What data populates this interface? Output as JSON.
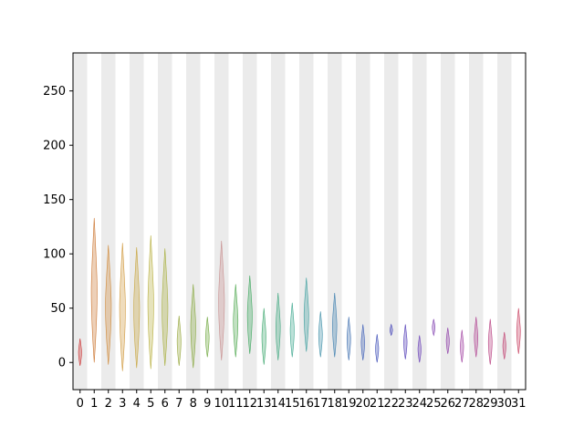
{
  "chart_data": {
    "type": "violin",
    "title": "",
    "xlabel": "",
    "ylabel": "",
    "categories": [
      "0",
      "1",
      "2",
      "3",
      "4",
      "5",
      "6",
      "7",
      "8",
      "9",
      "10",
      "11",
      "12",
      "13",
      "14",
      "15",
      "16",
      "17",
      "18",
      "19",
      "20",
      "21",
      "22",
      "23",
      "24",
      "25",
      "26",
      "27",
      "28",
      "29",
      "30",
      "31"
    ],
    "xlim": [
      -0.5,
      31.5
    ],
    "ylim": [
      -25,
      285
    ],
    "yticks": [
      0,
      50,
      100,
      150,
      200,
      250
    ],
    "grid": false,
    "background_bands": "alternating light-gray columns at even categories",
    "band_color": "#ebebeb",
    "groups": [
      {
        "name": "0",
        "color": "#cc3333",
        "min": -3,
        "max": 22
      },
      {
        "name": "1",
        "color": "#cc7733",
        "min": 0,
        "max": 133
      },
      {
        "name": "2",
        "color": "#d08a3a",
        "min": -2,
        "max": 108
      },
      {
        "name": "3",
        "color": "#d09a40",
        "min": -8,
        "max": 110
      },
      {
        "name": "4",
        "color": "#c8a640",
        "min": -5,
        "max": 106
      },
      {
        "name": "5",
        "color": "#b8b040",
        "min": -6,
        "max": 117
      },
      {
        "name": "6",
        "color": "#a8b040",
        "min": -3,
        "max": 105
      },
      {
        "name": "7",
        "color": "#98a840",
        "min": -3,
        "max": 43
      },
      {
        "name": "8",
        "color": "#88a840",
        "min": -5,
        "max": 72
      },
      {
        "name": "9",
        "color": "#70a840",
        "min": 5,
        "max": 42
      },
      {
        "name": "10",
        "color": "#c89090",
        "min": 2,
        "max": 112
      },
      {
        "name": "11",
        "color": "#50a850",
        "min": 5,
        "max": 72
      },
      {
        "name": "12",
        "color": "#40a860",
        "min": 8,
        "max": 80
      },
      {
        "name": "13",
        "color": "#40a870",
        "min": -2,
        "max": 50
      },
      {
        "name": "14",
        "color": "#40a880",
        "min": 2,
        "max": 64
      },
      {
        "name": "15",
        "color": "#40a890",
        "min": 5,
        "max": 55
      },
      {
        "name": "16",
        "color": "#40a0a0",
        "min": 10,
        "max": 78
      },
      {
        "name": "17",
        "color": "#4090a8",
        "min": 5,
        "max": 47
      },
      {
        "name": "18",
        "color": "#4080b0",
        "min": 5,
        "max": 64
      },
      {
        "name": "19",
        "color": "#4070b0",
        "min": 2,
        "max": 42
      },
      {
        "name": "20",
        "color": "#4060b8",
        "min": 2,
        "max": 35
      },
      {
        "name": "21",
        "color": "#4050b8",
        "min": 0,
        "max": 26
      },
      {
        "name": "22",
        "color": "#4040b8",
        "min": 25,
        "max": 35
      },
      {
        "name": "23",
        "color": "#5540b8",
        "min": 3,
        "max": 35
      },
      {
        "name": "24",
        "color": "#6a40b8",
        "min": 0,
        "max": 25
      },
      {
        "name": "25",
        "color": "#8040b0",
        "min": 25,
        "max": 40
      },
      {
        "name": "26",
        "color": "#9040a8",
        "min": 8,
        "max": 32
      },
      {
        "name": "27",
        "color": "#a040a0",
        "min": 0,
        "max": 30
      },
      {
        "name": "28",
        "color": "#b04090",
        "min": 5,
        "max": 42
      },
      {
        "name": "29",
        "color": "#b84080",
        "min": -2,
        "max": 40
      },
      {
        "name": "30",
        "color": "#c04070",
        "min": 3,
        "max": 28
      },
      {
        "name": "31",
        "color": "#c84060",
        "min": 8,
        "max": 50
      }
    ]
  }
}
